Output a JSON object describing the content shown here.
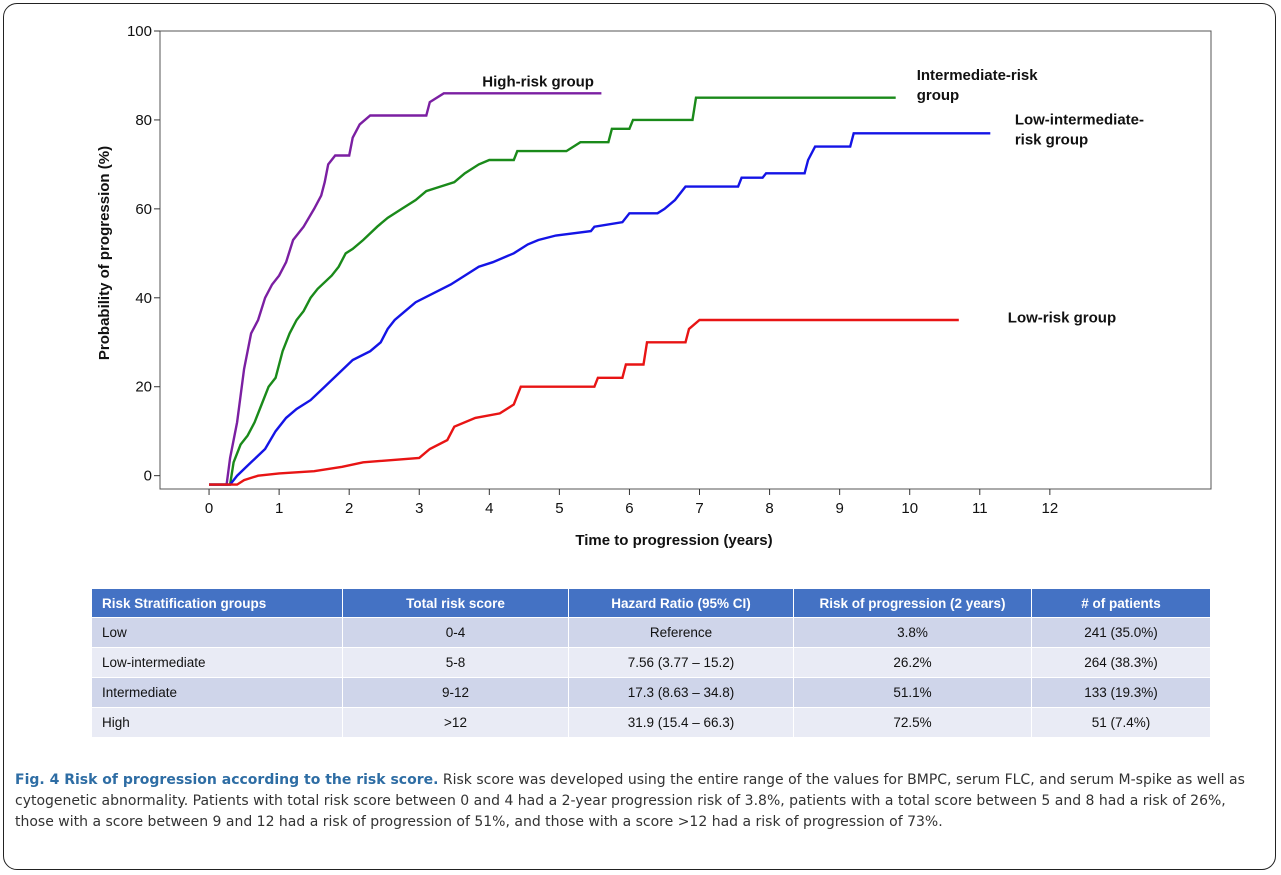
{
  "chart_data": {
    "type": "line",
    "title": "",
    "xlabel": "Time to progression (years)",
    "ylabel": "Probability of progression (%)",
    "xlim": [
      -0.7,
      14.3
    ],
    "ylim": [
      -3,
      100
    ],
    "xticks": [
      0,
      1,
      2,
      3,
      4,
      5,
      6,
      7,
      8,
      9,
      10,
      11,
      12
    ],
    "yticks": [
      0,
      20,
      40,
      60,
      80,
      100
    ],
    "grid": false,
    "legend": "inline labels at line ends",
    "series": [
      {
        "name": "High-risk group",
        "color": "#7b1fa2",
        "label_lines": [
          "High-risk group"
        ],
        "points": [
          [
            0,
            -2
          ],
          [
            0.25,
            -2
          ],
          [
            0.3,
            4
          ],
          [
            0.35,
            8
          ],
          [
            0.4,
            12
          ],
          [
            0.45,
            18
          ],
          [
            0.5,
            24
          ],
          [
            0.55,
            28
          ],
          [
            0.6,
            32
          ],
          [
            0.7,
            35
          ],
          [
            0.8,
            40
          ],
          [
            0.9,
            43
          ],
          [
            1.0,
            45
          ],
          [
            1.1,
            48
          ],
          [
            1.2,
            53
          ],
          [
            1.35,
            56
          ],
          [
            1.5,
            60
          ],
          [
            1.6,
            63
          ],
          [
            1.65,
            66
          ],
          [
            1.7,
            70
          ],
          [
            1.8,
            72
          ],
          [
            2.0,
            72
          ],
          [
            2.05,
            76
          ],
          [
            2.15,
            79
          ],
          [
            2.3,
            81
          ],
          [
            3.1,
            81
          ],
          [
            3.15,
            84
          ],
          [
            3.35,
            86
          ],
          [
            5.6,
            86
          ]
        ]
      },
      {
        "name": "Intermediate-risk group",
        "color": "#1a8a1a",
        "label_lines": [
          "Intermediate-risk",
          "group"
        ],
        "points": [
          [
            0,
            -2
          ],
          [
            0.3,
            -2
          ],
          [
            0.35,
            3
          ],
          [
            0.45,
            7
          ],
          [
            0.55,
            9
          ],
          [
            0.65,
            12
          ],
          [
            0.75,
            16
          ],
          [
            0.85,
            20
          ],
          [
            0.95,
            22
          ],
          [
            1.05,
            28
          ],
          [
            1.15,
            32
          ],
          [
            1.25,
            35
          ],
          [
            1.35,
            37
          ],
          [
            1.45,
            40
          ],
          [
            1.55,
            42
          ],
          [
            1.75,
            45
          ],
          [
            1.85,
            47
          ],
          [
            1.95,
            50
          ],
          [
            2.05,
            51
          ],
          [
            2.2,
            53
          ],
          [
            2.4,
            56
          ],
          [
            2.55,
            58
          ],
          [
            2.75,
            60
          ],
          [
            2.95,
            62
          ],
          [
            3.1,
            64
          ],
          [
            3.3,
            65
          ],
          [
            3.5,
            66
          ],
          [
            3.65,
            68
          ],
          [
            3.85,
            70
          ],
          [
            4.0,
            71
          ],
          [
            4.35,
            71
          ],
          [
            4.4,
            73
          ],
          [
            5.1,
            73
          ],
          [
            5.3,
            75
          ],
          [
            5.7,
            75
          ],
          [
            5.75,
            78
          ],
          [
            6.0,
            78
          ],
          [
            6.05,
            80
          ],
          [
            6.9,
            80
          ],
          [
            6.95,
            85
          ],
          [
            9.8,
            85
          ]
        ]
      },
      {
        "name": "Low-intermediate-risk group",
        "color": "#1414e6",
        "label_lines": [
          "Low-intermediate-",
          "risk group"
        ],
        "points": [
          [
            0,
            -2
          ],
          [
            0.3,
            -2
          ],
          [
            0.4,
            0
          ],
          [
            0.6,
            3
          ],
          [
            0.8,
            6
          ],
          [
            0.95,
            10
          ],
          [
            1.1,
            13
          ],
          [
            1.25,
            15
          ],
          [
            1.45,
            17
          ],
          [
            1.65,
            20
          ],
          [
            1.85,
            23
          ],
          [
            2.05,
            26
          ],
          [
            2.3,
            28
          ],
          [
            2.45,
            30
          ],
          [
            2.55,
            33
          ],
          [
            2.65,
            35
          ],
          [
            2.8,
            37
          ],
          [
            2.95,
            39
          ],
          [
            3.2,
            41
          ],
          [
            3.45,
            43
          ],
          [
            3.65,
            45
          ],
          [
            3.85,
            47
          ],
          [
            4.05,
            48
          ],
          [
            4.35,
            50
          ],
          [
            4.55,
            52
          ],
          [
            4.7,
            53
          ],
          [
            4.95,
            54
          ],
          [
            5.45,
            55
          ],
          [
            5.5,
            56
          ],
          [
            5.9,
            57
          ],
          [
            6.0,
            59
          ],
          [
            6.4,
            59
          ],
          [
            6.5,
            60
          ],
          [
            6.65,
            62
          ],
          [
            6.8,
            65
          ],
          [
            7.55,
            65
          ],
          [
            7.6,
            67
          ],
          [
            7.9,
            67
          ],
          [
            7.95,
            68
          ],
          [
            8.5,
            68
          ],
          [
            8.55,
            71
          ],
          [
            8.65,
            74
          ],
          [
            9.15,
            74
          ],
          [
            9.2,
            77
          ],
          [
            11.15,
            77
          ]
        ]
      },
      {
        "name": "Low-risk group",
        "color": "#e81414",
        "label_lines": [
          "Low-risk group"
        ],
        "points": [
          [
            0,
            -2
          ],
          [
            0.4,
            -2
          ],
          [
            0.5,
            -1
          ],
          [
            0.7,
            0
          ],
          [
            1.0,
            0.5
          ],
          [
            1.5,
            1
          ],
          [
            1.9,
            2
          ],
          [
            2.2,
            3
          ],
          [
            3.0,
            4
          ],
          [
            3.15,
            6
          ],
          [
            3.4,
            8
          ],
          [
            3.5,
            11
          ],
          [
            3.8,
            13
          ],
          [
            4.15,
            14
          ],
          [
            4.35,
            16
          ],
          [
            4.45,
            20
          ],
          [
            5.5,
            20
          ],
          [
            5.55,
            22
          ],
          [
            5.9,
            22
          ],
          [
            5.95,
            25
          ],
          [
            6.2,
            25
          ],
          [
            6.25,
            30
          ],
          [
            6.8,
            30
          ],
          [
            6.85,
            33
          ],
          [
            7.0,
            35
          ],
          [
            10.7,
            35
          ]
        ]
      }
    ]
  },
  "table": {
    "headers": [
      "Risk Stratification groups",
      "Total risk score",
      "Hazard Ratio (95% CI)",
      "Risk of progression (2 years)",
      "# of patients"
    ],
    "rows": [
      [
        "Low",
        "0-4",
        "Reference",
        "3.8%",
        "241 (35.0%)"
      ],
      [
        "Low-intermediate",
        "5-8",
        "7.56 (3.77 – 15.2)",
        "26.2%",
        "264 (38.3%)"
      ],
      [
        "Intermediate",
        "9-12",
        "17.3 (8.63 – 34.8)",
        "51.1%",
        "133 (19.3%)"
      ],
      [
        "High",
        ">12",
        "31.9 (15.4 – 66.3)",
        "72.5%",
        "51 (7.4%)"
      ]
    ],
    "header_color": "#4472c4"
  },
  "caption": {
    "title": "Fig. 4 Risk of progression according to the risk score.",
    "body": " Risk score was developed using the entire range of the values for BMPC, serum FLC, and serum M-spike as well as cytogenetic abnormality. Patients with total risk score between 0 and 4 had a 2-year progression risk of 3.8%, patients with a total score between 5 and 8 had a risk of 26%, those with a score between 9 and 12 had a risk of progression of 51%, and those with a score >12 had a risk of progression of 73%."
  }
}
